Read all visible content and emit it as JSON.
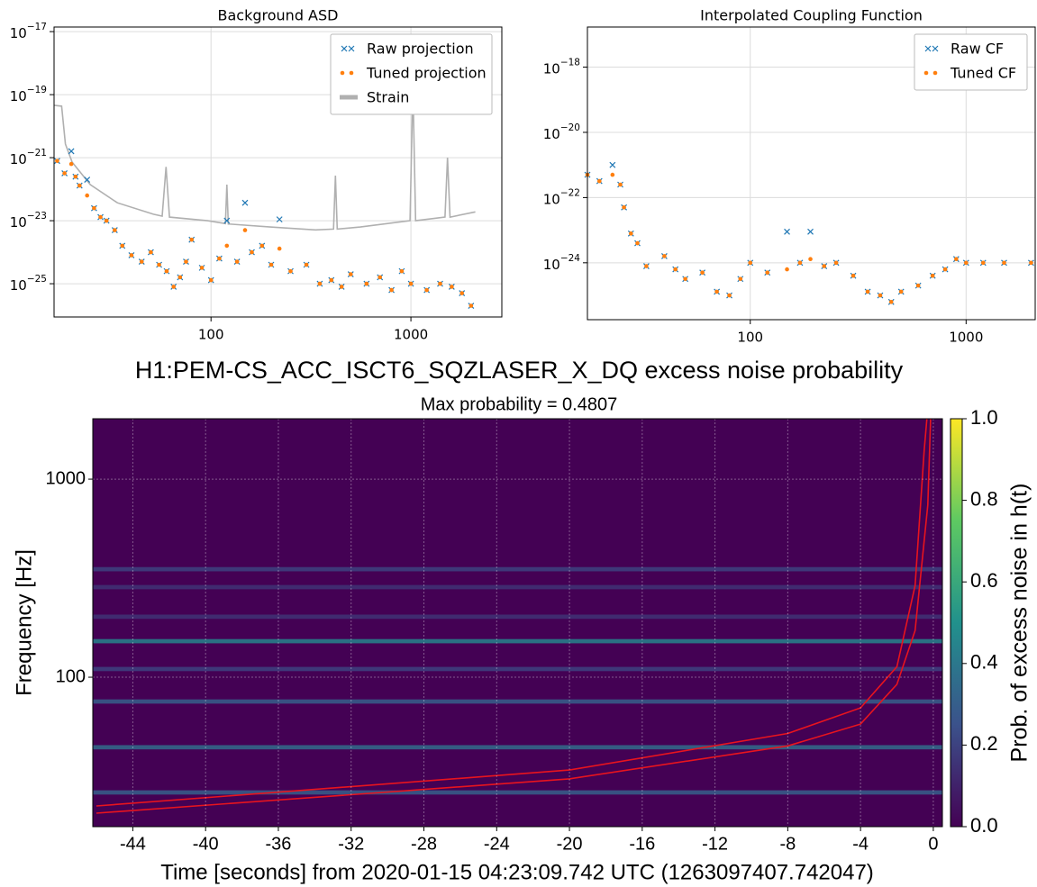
{
  "chart_data": [
    {
      "type": "scatter",
      "title": "Background ASD",
      "xscale": "log",
      "yscale": "log",
      "grid": true,
      "legend": "upper right",
      "xlim": [
        16.4,
        2850
      ],
      "ylim": [
        8.8e-27,
        1.4e-17
      ],
      "xticks": [
        100,
        1000
      ],
      "yticks": [
        {
          "value": 1e-17,
          "label": "10",
          "exponent": "−17"
        },
        {
          "value": 1e-19,
          "label": "10",
          "exponent": "−19"
        },
        {
          "value": 1e-21,
          "label": "10",
          "exponent": "−21"
        },
        {
          "value": 1e-23,
          "label": "10",
          "exponent": "−23"
        },
        {
          "value": 1e-25,
          "label": "10",
          "exponent": "−25"
        }
      ],
      "series": [
        {
          "name": "Raw projection",
          "color": "#1f77b4",
          "marker": "x",
          "x": [
            17,
            18.5,
            20,
            21,
            22,
            24,
            26,
            28,
            30,
            33,
            36,
            40,
            45,
            50,
            55,
            60,
            65,
            70,
            75,
            80,
            90,
            100,
            110,
            120,
            135,
            148,
            160,
            180,
            200,
            220,
            250,
            300,
            350,
            400,
            450,
            500,
            600,
            700,
            800,
            900,
            1000,
            1200,
            1400,
            1600,
            1800,
            2000
          ],
          "values": [
            7.9e-22,
            3.2e-22,
            1.6e-21,
            2.5e-22,
            1.3e-22,
            2e-22,
            2.5e-23,
            1.3e-23,
            1e-23,
            5e-24,
            1.6e-24,
            8e-25,
            5e-25,
            1e-24,
            4e-25,
            2.5e-25,
            8e-26,
            1.6e-25,
            5e-25,
            2.5e-24,
            3.2e-25,
            1.3e-25,
            6.3e-25,
            1e-23,
            5e-25,
            3.7e-23,
            1e-24,
            1.6e-24,
            4e-25,
            1.1e-23,
            2.5e-25,
            4e-25,
            1e-25,
            1.3e-25,
            8e-26,
            2e-25,
            1e-25,
            1.6e-25,
            6.3e-26,
            2.5e-25,
            1e-25,
            6.3e-26,
            1e-25,
            8e-26,
            5e-26,
            2e-26
          ]
        },
        {
          "name": "Tuned projection",
          "color": "#ff7f0e",
          "marker": "dot",
          "x": [
            17,
            18.5,
            20,
            21,
            22,
            24,
            26,
            28,
            30,
            33,
            36,
            40,
            45,
            50,
            55,
            60,
            65,
            70,
            75,
            80,
            90,
            100,
            110,
            120,
            135,
            148,
            160,
            180,
            200,
            220,
            250,
            300,
            350,
            400,
            450,
            500,
            600,
            700,
            800,
            900,
            1000,
            1200,
            1400,
            1600,
            1800,
            2000
          ],
          "values": [
            7.9e-22,
            3.2e-22,
            6.3e-22,
            2.5e-22,
            1.3e-22,
            6.3e-23,
            2.5e-23,
            1.3e-23,
            1e-23,
            5e-24,
            1.6e-24,
            8e-25,
            5e-25,
            1e-24,
            4e-25,
            2.5e-25,
            8e-26,
            1.6e-25,
            5e-25,
            2.5e-24,
            3.2e-25,
            1.3e-25,
            6.3e-25,
            1.6e-24,
            5e-25,
            5e-24,
            1e-24,
            1.6e-24,
            4e-25,
            1.3e-24,
            2.5e-25,
            4e-25,
            1e-25,
            1.3e-25,
            8e-26,
            2e-25,
            1e-25,
            1.6e-25,
            6.3e-26,
            2.5e-25,
            1e-25,
            6.3e-26,
            1e-25,
            8e-26,
            5e-26,
            2e-26
          ]
        },
        {
          "name": "Strain",
          "color": "#b0b0b0",
          "marker": "line",
          "x": [
            16.4,
            17.9,
            18.7,
            20.2,
            24.9,
            34,
            51.5,
            57,
            59.6,
            62,
            96,
            118,
            120,
            122,
            198,
            333,
            410,
            419,
            428,
            558,
            990,
            1023,
            1056,
            1480,
            1525,
            1570,
            2100
          ],
          "values": [
            4.6e-20,
            4.3e-20,
            2.7e-21,
            7.2e-22,
            1.4e-22,
            3.7e-23,
            1.6e-23,
            1.4e-23,
            5.1e-22,
            1.3e-23,
            1e-23,
            8.1e-24,
            1.4e-22,
            7.9e-24,
            6.3e-24,
            5.1e-24,
            5.4e-24,
            2.7e-22,
            5.4e-24,
            6.3e-24,
            1e-23,
            1.9e-19,
            1e-23,
            1.3e-23,
            1e-21,
            1.3e-23,
            1.9e-23
          ]
        }
      ]
    },
    {
      "type": "scatter",
      "title": "Interpolated Coupling Function",
      "xscale": "log",
      "yscale": "log",
      "grid": true,
      "legend": "upper right",
      "xlim": [
        17.6,
        2090
      ],
      "ylim": [
        1.8e-26,
        1.7e-17
      ],
      "xticks": [
        100,
        1000
      ],
      "yticks": [
        {
          "value": 1e-18,
          "label": "10",
          "exponent": "−18"
        },
        {
          "value": 1e-20,
          "label": "10",
          "exponent": "−20"
        },
        {
          "value": 1e-22,
          "label": "10",
          "exponent": "−22"
        },
        {
          "value": 1e-24,
          "label": "10",
          "exponent": "−24"
        }
      ],
      "series": [
        {
          "name": "Raw CF",
          "color": "#1f77b4",
          "marker": "x",
          "x": [
            17.6,
            20,
            23,
            25,
            26,
            28,
            30,
            33,
            40,
            45,
            50,
            60,
            70,
            80,
            90,
            100,
            120,
            148,
            170,
            190,
            220,
            250,
            300,
            350,
            400,
            450,
            500,
            600,
            700,
            800,
            900,
            1000,
            1200,
            1500,
            2000
          ],
          "values": [
            5e-22,
            3.2e-22,
            1e-21,
            2.5e-22,
            5e-23,
            7.9e-24,
            4e-24,
            7.9e-25,
            1.6e-24,
            6.3e-25,
            3.2e-25,
            5e-25,
            1.3e-25,
            1e-25,
            3.2e-25,
            1e-24,
            5e-25,
            9e-24,
            1e-24,
            9e-24,
            7.9e-25,
            1e-24,
            4e-25,
            1.3e-25,
            1e-25,
            6.3e-26,
            1.3e-25,
            2e-25,
            4e-25,
            6.3e-25,
            1.3e-24,
            1e-24,
            1e-24,
            1e-24,
            1e-24
          ]
        },
        {
          "name": "Tuned CF",
          "color": "#ff7f0e",
          "marker": "dot",
          "x": [
            17.6,
            20,
            23,
            25,
            26,
            28,
            30,
            33,
            40,
            45,
            50,
            60,
            70,
            80,
            90,
            100,
            120,
            148,
            170,
            190,
            220,
            250,
            300,
            350,
            400,
            450,
            500,
            600,
            700,
            800,
            900,
            1000,
            1200,
            1500,
            2000
          ],
          "values": [
            5e-22,
            3.2e-22,
            5e-22,
            2.5e-22,
            5e-23,
            7.9e-24,
            4e-24,
            7.9e-25,
            1.6e-24,
            6.3e-25,
            3.2e-25,
            5e-25,
            1.3e-25,
            1e-25,
            3.2e-25,
            1e-24,
            5e-25,
            6.3e-25,
            1e-24,
            1.3e-24,
            7.9e-25,
            1e-24,
            4e-25,
            1.3e-25,
            1e-25,
            6.3e-26,
            1.3e-25,
            2e-25,
            4e-25,
            6.3e-25,
            1.3e-24,
            1e-24,
            1e-24,
            1e-24,
            1e-24
          ]
        }
      ]
    },
    {
      "type": "heatmap",
      "title": "H1:PEM-CS_ACC_ISCT6_SQZLASER_X_DQ excess noise probability",
      "subtitle": "Max probability = 0.4807",
      "xlabel": "Time [seconds] from 2020-01-15 04:23:09.742 UTC (1263097407.742047)",
      "ylabel": "Frequency [Hz]",
      "colorbar_label": "Prob. of excess noise in h(t)",
      "colormap": "viridis",
      "yscale": "log",
      "grid": true,
      "xlim": [
        -46.2,
        0.5
      ],
      "ylim": [
        17.6,
        2018
      ],
      "clim": [
        0,
        1
      ],
      "xticks": [
        -44,
        -40,
        -36,
        -32,
        -28,
        -24,
        -20,
        -16,
        -12,
        -8,
        -4,
        0
      ],
      "yticks": [
        100,
        1000
      ],
      "cticks": [
        {
          "value": 0,
          "label": "0.0"
        },
        0.2,
        0.4,
        0.6,
        0.8,
        {
          "value": 1,
          "label": "1.0"
        }
      ],
      "bands": [
        26.2,
        44.3,
        75.4,
        110,
        152,
        202,
        285,
        351
      ],
      "values": [
        0.3,
        0.35,
        0.3,
        0.2,
        0.45,
        0.15,
        0.15,
        0.2
      ],
      "tracks": [
        {
          "color": "#e8141e",
          "x": [
            -46,
            -20,
            -8,
            -4,
            -2,
            -1,
            -0.3,
            -0.15
          ],
          "values": [
            20.6,
            30.7,
            45,
            58,
            92,
            172,
            740,
            2018
          ]
        },
        {
          "color": "#e8141e",
          "x": [
            -46,
            -20,
            -8,
            -4,
            -2,
            -1,
            -0.5,
            -0.35
          ],
          "values": [
            22.4,
            34,
            52,
            70,
            113,
            290,
            1400,
            2018
          ]
        }
      ]
    }
  ]
}
